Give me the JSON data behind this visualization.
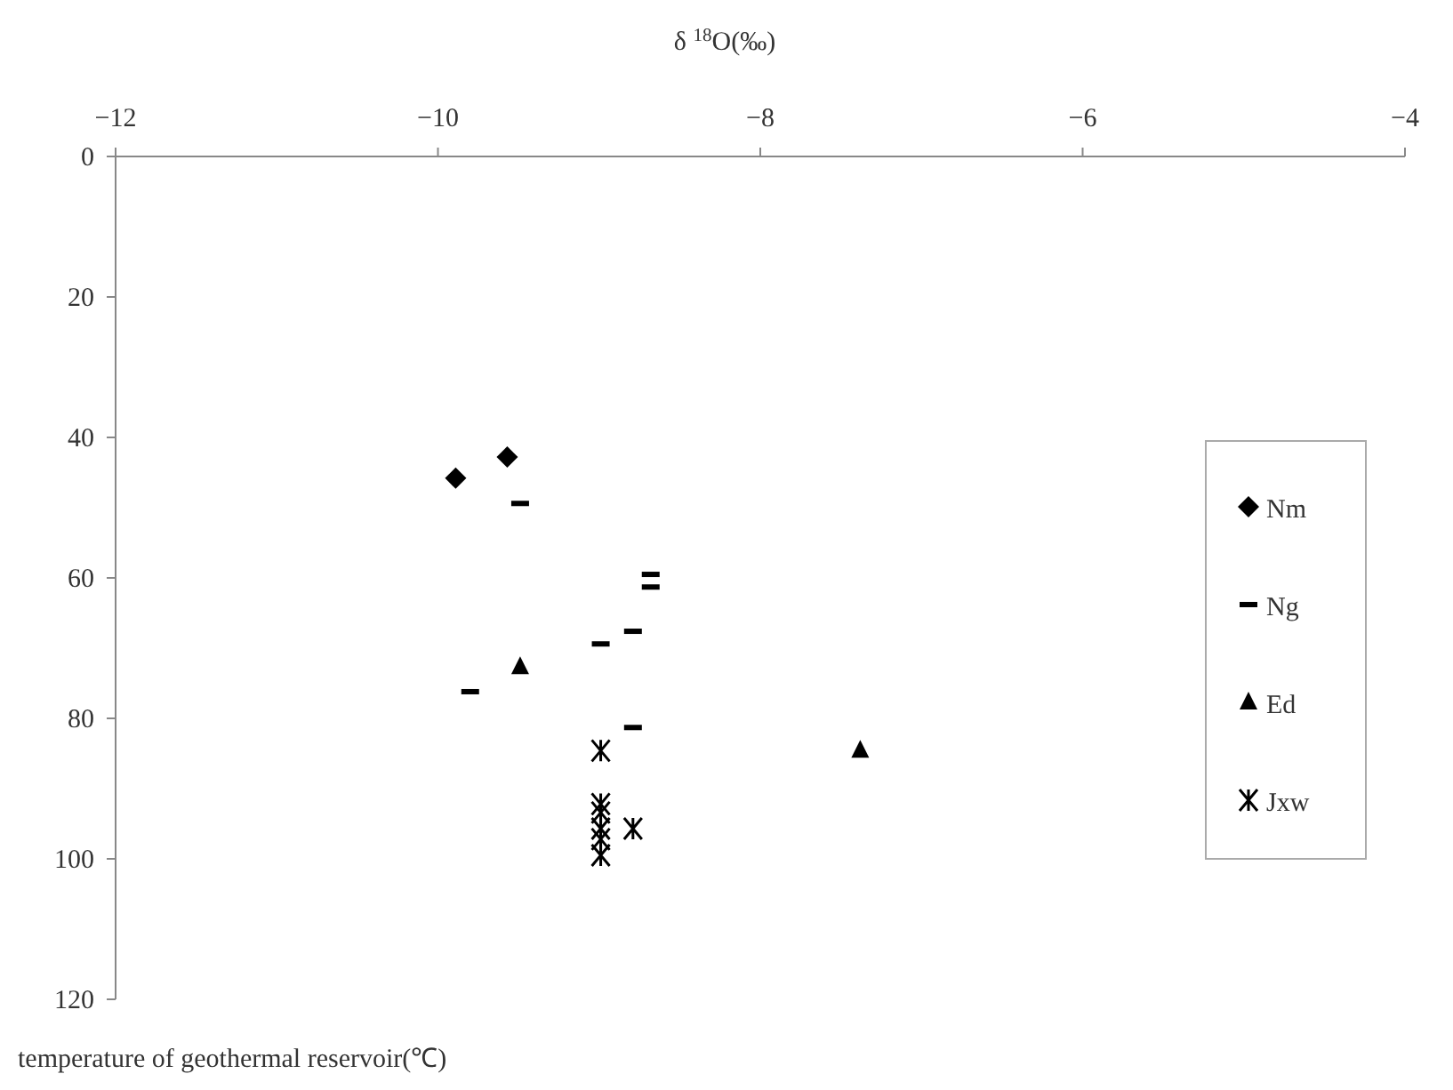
{
  "chart_data": {
    "type": "scatter",
    "xlabel": "δ $^{18}$O(‰)",
    "ylabel": "temperature of geothermal reservoir(℃)",
    "xlim": [
      -12,
      -4
    ],
    "xticks": [
      -12,
      -10,
      -8,
      -6,
      -4
    ],
    "ylim": [
      120,
      0
    ],
    "yticks": [
      0,
      20,
      40,
      60,
      80,
      100,
      120
    ],
    "grid": false,
    "legend": "right",
    "series": [
      {
        "name": "Nm",
        "color": "#000000",
        "marker": "diamond",
        "x": [
          -9.89,
          -9.57
        ],
        "values": [
          45.8,
          42.8
        ]
      },
      {
        "name": "Ng",
        "color": "#000000",
        "x": [
          -9.49,
          -8.99,
          -8.79,
          -9.8,
          -8.79,
          -8.68,
          -8.68
        ],
        "values": [
          49.4,
          69.4,
          67.6,
          76.2,
          81.3,
          59.5,
          61.3
        ]
      },
      {
        "name": "Ed",
        "color": "#000000",
        "marker": "triangle",
        "x": [
          -9.49,
          -7.38
        ],
        "values": [
          72.7,
          84.6
        ]
      },
      {
        "name": "Jxw",
        "color": "#000000",
        "marker": "cross",
        "x": [
          -8.99,
          -8.99,
          -8.99,
          -8.99,
          -8.99,
          -8.79,
          -8.99
        ],
        "values": [
          84.6,
          92.2,
          93.4,
          95.7,
          97.2,
          95.7,
          99.5
        ]
      }
    ]
  }
}
